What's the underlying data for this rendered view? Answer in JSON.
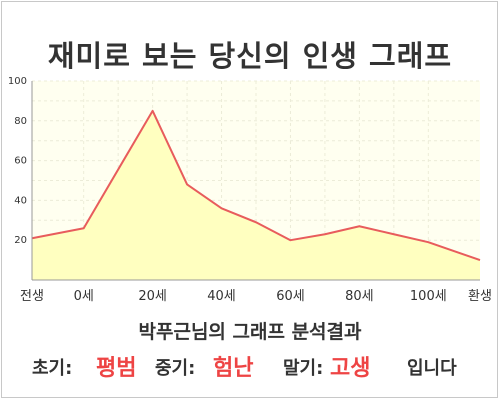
{
  "title": "재미로 보는 당신의 인생 그래프",
  "chart_data": {
    "type": "area",
    "x": [
      -15,
      0,
      20,
      30,
      40,
      50,
      60,
      70,
      80,
      90,
      100,
      115
    ],
    "values": [
      21,
      26,
      85,
      48,
      36,
      29,
      20,
      23,
      27,
      23,
      19,
      10
    ],
    "ylim": [
      0,
      100
    ],
    "xlim": [
      -15,
      115
    ],
    "y_ticks": [
      "20",
      "40",
      "60",
      "80",
      "100"
    ],
    "x_tick_labels": [
      {
        "x": -15,
        "label": "전생"
      },
      {
        "x": 0,
        "label": "0세"
      },
      {
        "x": 20,
        "label": "20세"
      },
      {
        "x": 40,
        "label": "40세"
      },
      {
        "x": 60,
        "label": "60세"
      },
      {
        "x": 80,
        "label": "80세"
      },
      {
        "x": 100,
        "label": "100세"
      },
      {
        "x": 115,
        "label": "환생"
      }
    ],
    "grid": true,
    "line_color": "#e85c5c",
    "fill_color": "#ffffc0",
    "background_color": "#fffff0"
  },
  "result": {
    "headline": "박푸근님의 그래프 분석결과",
    "early_label": "초기:",
    "early_value": "평범",
    "middle_label": "중기:",
    "middle_value": "험난",
    "late_label": "말기:",
    "late_value": "고생",
    "suffix": "입니다"
  }
}
